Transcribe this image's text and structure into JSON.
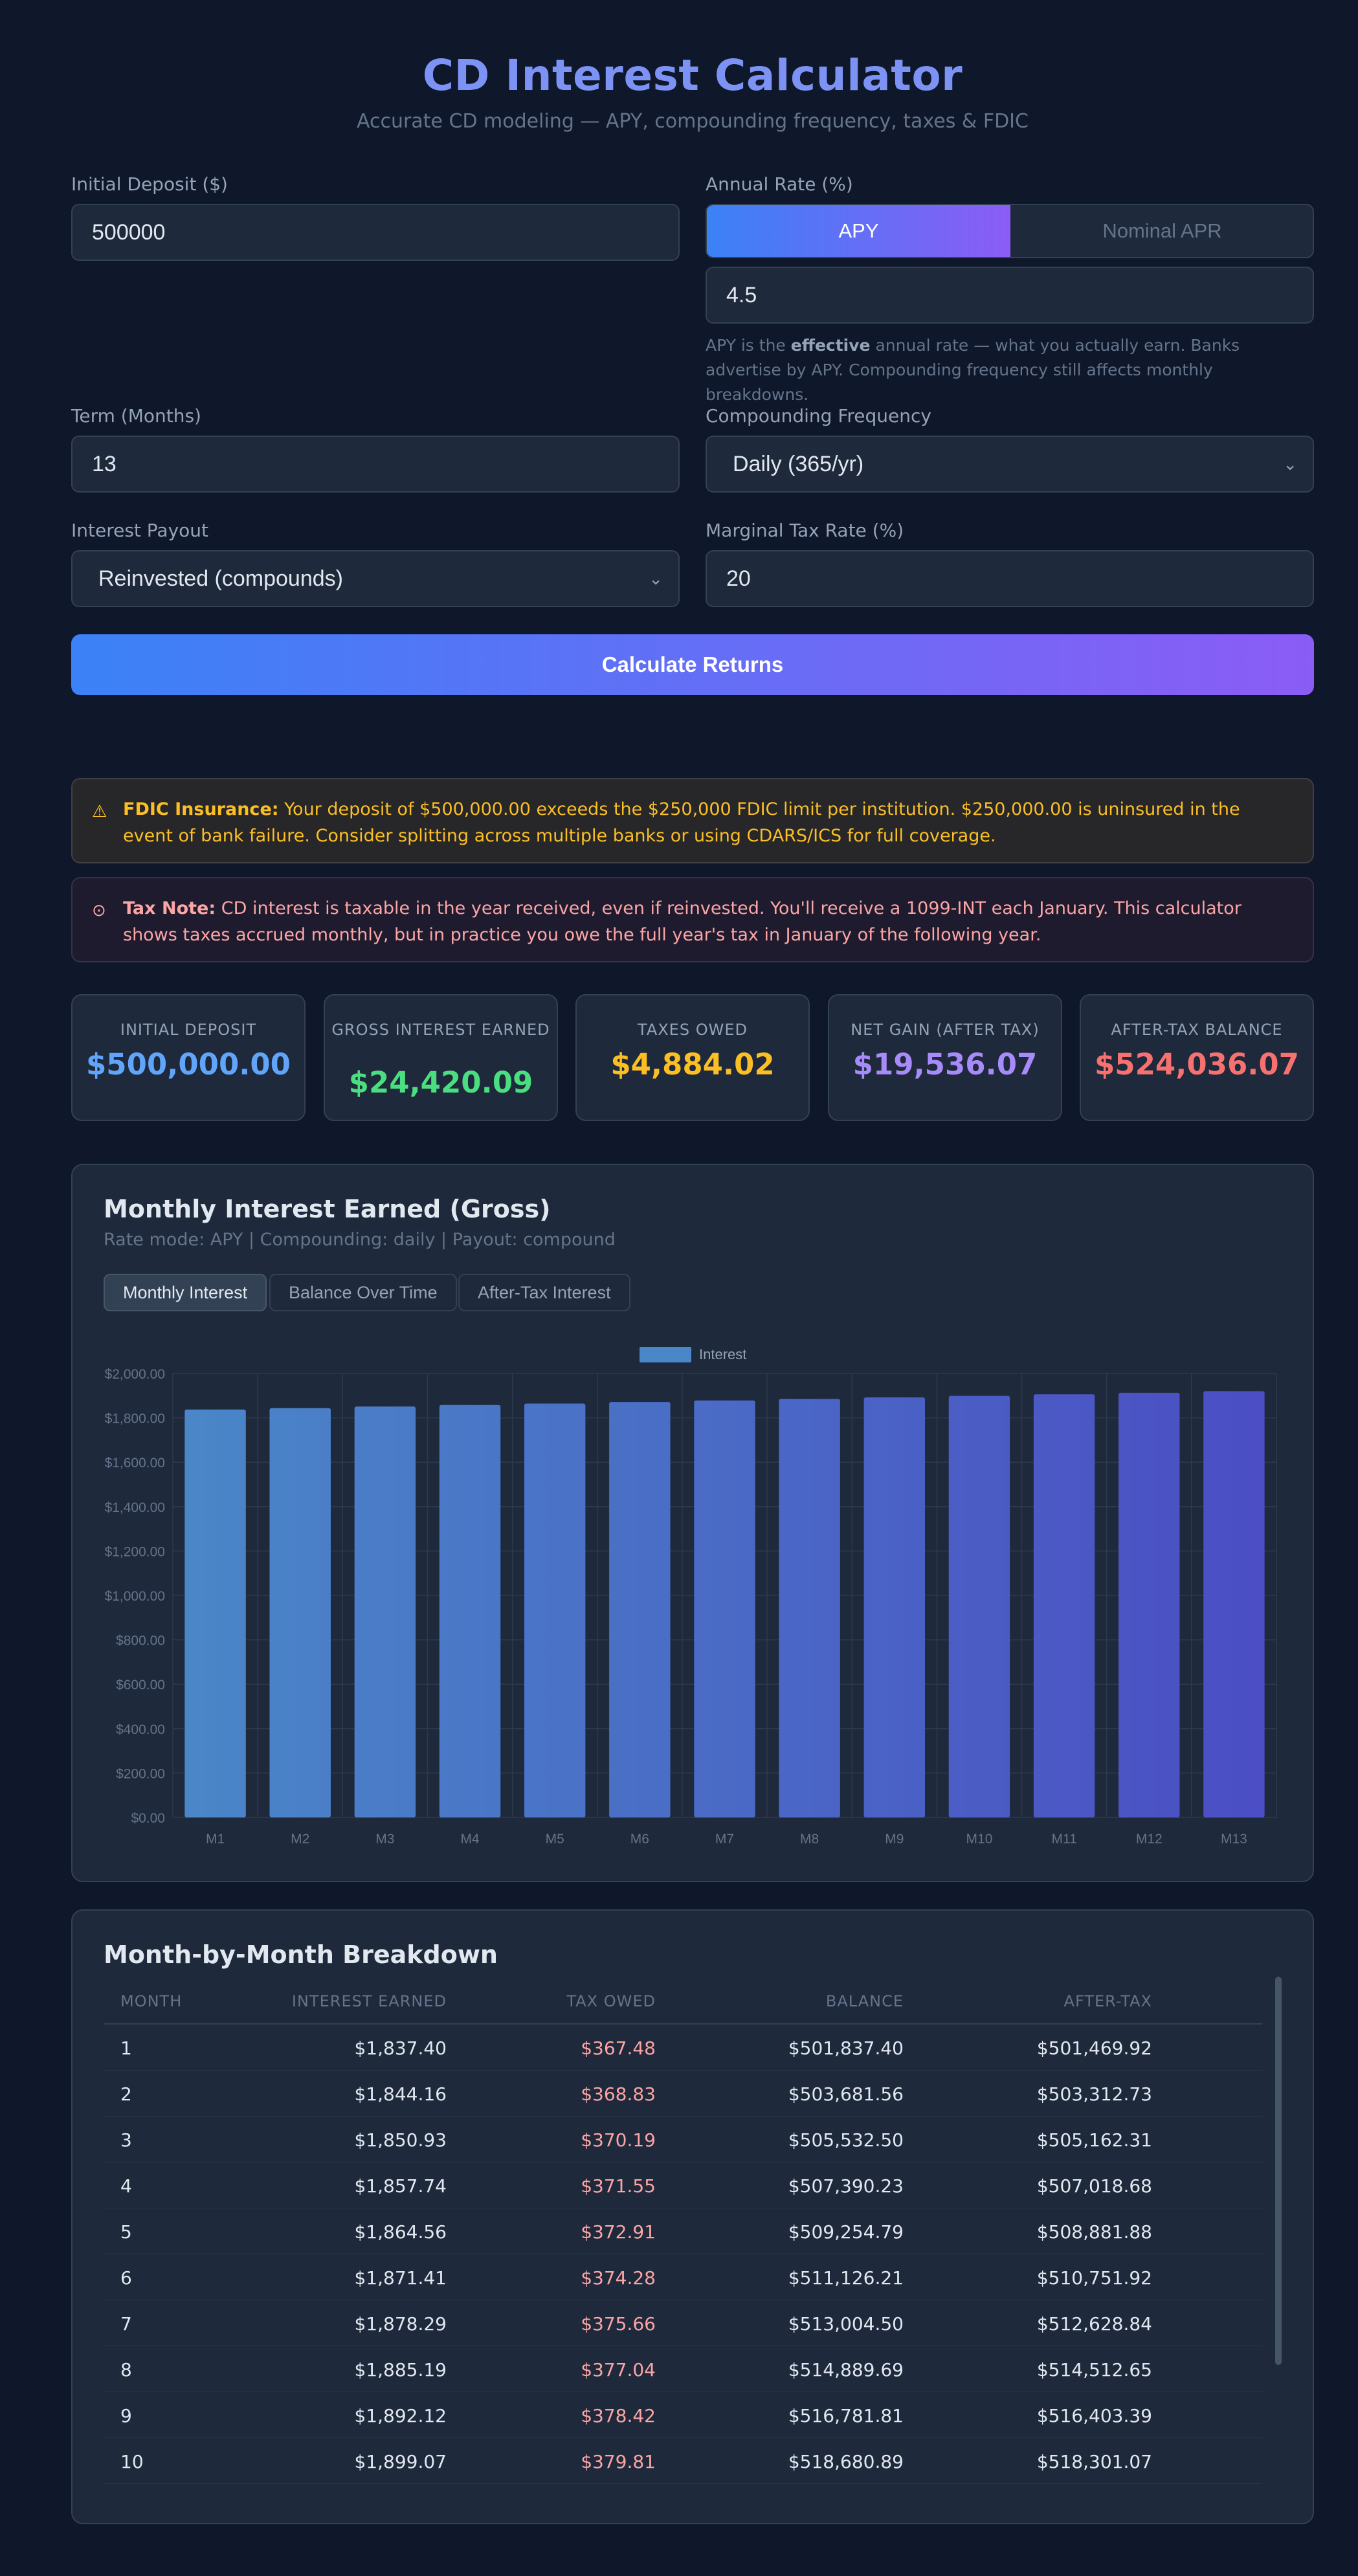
{
  "header": {
    "title": "CD Interest Calculator",
    "subtitle": "Accurate CD modeling — APY, compounding frequency, taxes & FDIC"
  },
  "form": {
    "initial_deposit": {
      "label": "Initial Deposit ($)",
      "value": "500000"
    },
    "annual_rate": {
      "label": "Annual Rate (%)",
      "mode_options": [
        "APY",
        "Nominal APR"
      ],
      "selected_mode": "APY",
      "value": "4.5",
      "hint_prefix": "APY is the ",
      "hint_bold": "effective",
      "hint_suffix": " annual rate — what you actually earn. Banks advertise by APY. Compounding frequency still affects monthly breakdowns."
    },
    "term": {
      "label": "Term (Months)",
      "value": "13"
    },
    "compounding": {
      "label": "Compounding Frequency",
      "value": "Daily (365/yr)"
    },
    "payout": {
      "label": "Interest Payout",
      "value": "Reinvested (compounds)"
    },
    "tax_rate": {
      "label": "Marginal Tax Rate (%)",
      "value": "20"
    },
    "calculate_label": "Calculate Returns"
  },
  "alerts": {
    "fdic": {
      "title": "FDIC Insurance:",
      "text": " Your deposit of $500,000.00 exceeds the $250,000 FDIC limit per institution. $250,000.00 is uninsured in the event of bank failure. Consider splitting across multiple banks or using CDARS/ICS for full coverage."
    },
    "tax": {
      "title": "Tax Note:",
      "text": " CD interest is taxable in the year received, even if reinvested. You'll receive a 1099-INT each January. This calculator shows taxes accrued monthly, but in practice you owe the full year's tax in January of the following year."
    }
  },
  "stats": [
    {
      "label": "INITIAL DEPOSIT",
      "value": "$500,000.00",
      "color": "#60a5fa"
    },
    {
      "label": "GROSS INTEREST EARNED",
      "value": "$24,420.09",
      "color": "#4ade80"
    },
    {
      "label": "TAXES OWED",
      "value": "$4,884.02",
      "color": "#fbbf24"
    },
    {
      "label": "NET GAIN (AFTER TAX)",
      "value": "$19,536.07",
      "color": "#a78bfa"
    },
    {
      "label": "AFTER-TAX BALANCE",
      "value": "$524,036.07",
      "color": "#f87171"
    }
  ],
  "chart_section": {
    "title": "Monthly Interest Earned (Gross)",
    "subtitle": "Rate mode: APY | Compounding: daily | Payout: compound",
    "tabs": [
      "Monthly Interest",
      "Balance Over Time",
      "After-Tax Interest"
    ],
    "active_tab": "Monthly Interest"
  },
  "chart_data": {
    "type": "bar",
    "legend": "Interest",
    "legend_position": "top",
    "categories": [
      "M1",
      "M2",
      "M3",
      "M4",
      "M5",
      "M6",
      "M7",
      "M8",
      "M9",
      "M10",
      "M11",
      "M12",
      "M13"
    ],
    "values": [
      1837.4,
      1844.16,
      1850.93,
      1857.74,
      1864.56,
      1871.41,
      1878.29,
      1885.19,
      1892.12,
      1899.07,
      1906.05,
      1913.05,
      1920.08
    ],
    "y_ticks": [
      "$0.00",
      "$200.00",
      "$400.00",
      "$600.00",
      "$800.00",
      "$1,000.00",
      "$1,200.00",
      "$1,400.00",
      "$1,600.00",
      "$1,800.00",
      "$2,000.00"
    ],
    "ylim": [
      0,
      2000
    ],
    "grid": true,
    "bar_color_start": "#4a87c8",
    "bar_color_end": "#4b4dc4"
  },
  "table": {
    "title": "Month-by-Month Breakdown",
    "headers": [
      "MONTH",
      "INTEREST EARNED",
      "TAX OWED",
      "BALANCE",
      "AFTER-TAX"
    ],
    "rows": [
      [
        "1",
        "$1,837.40",
        "$367.48",
        "$501,837.40",
        "$501,469.92"
      ],
      [
        "2",
        "$1,844.16",
        "$368.83",
        "$503,681.56",
        "$503,312.73"
      ],
      [
        "3",
        "$1,850.93",
        "$370.19",
        "$505,532.50",
        "$505,162.31"
      ],
      [
        "4",
        "$1,857.74",
        "$371.55",
        "$507,390.23",
        "$507,018.68"
      ],
      [
        "5",
        "$1,864.56",
        "$372.91",
        "$509,254.79",
        "$508,881.88"
      ],
      [
        "6",
        "$1,871.41",
        "$374.28",
        "$511,126.21",
        "$510,751.92"
      ],
      [
        "7",
        "$1,878.29",
        "$375.66",
        "$513,004.50",
        "$512,628.84"
      ],
      [
        "8",
        "$1,885.19",
        "$377.04",
        "$514,889.69",
        "$514,512.65"
      ],
      [
        "9",
        "$1,892.12",
        "$378.42",
        "$516,781.81",
        "$516,403.39"
      ],
      [
        "10",
        "$1,899.07",
        "$379.81",
        "$518,680.89",
        "$518,301.07"
      ]
    ]
  }
}
